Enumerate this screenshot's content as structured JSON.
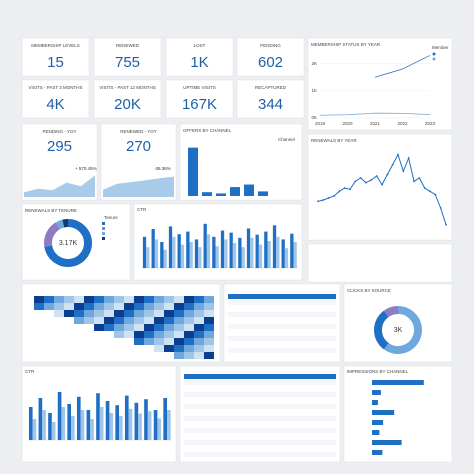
{
  "kpis": [
    {
      "label": "MEMBERSHIP LEVELS",
      "value": "15"
    },
    {
      "label": "RENEWED",
      "value": "755"
    },
    {
      "label": "LOST",
      "value": "1K"
    },
    {
      "label": "PENDING",
      "value": "602"
    },
    {
      "label": "VISITS - PAST 3 MONTHS",
      "value": "4K"
    },
    {
      "label": "VISITS - PAST 12 MONTHS",
      "value": "20K"
    },
    {
      "label": "UPTIME VISITS",
      "value": "167K"
    },
    {
      "label": "RECAPTURED",
      "value": "344"
    }
  ],
  "yoy": [
    {
      "title": "PENDING - YOY",
      "value": "295",
      "change": "+ 570.45%",
      "values": [
        20,
        35,
        28,
        60,
        45,
        90
      ],
      "color": "#6fa8dc"
    },
    {
      "title": "RENEWED - YOY",
      "value": "270",
      "change": "-38.36%",
      "values": [
        30,
        55,
        62,
        70,
        78,
        85
      ],
      "color": "#6fa8dc"
    }
  ],
  "status_chart": {
    "title": "MEMBERSHIP STATUS BY YEAR",
    "legend_title": "Member",
    "x": [
      "2019",
      "2020",
      "2021",
      "2022",
      "2023"
    ],
    "ylim": [
      0,
      2500
    ],
    "yticks": [
      {
        "value": 0,
        "label": "0K"
      },
      {
        "value": 1000,
        "label": "1K"
      },
      {
        "value": 2000,
        "label": "2K"
      }
    ],
    "series": [
      {
        "color": "#2f6fc4",
        "values": [
          null,
          null,
          1500,
          1800,
          2300
        ]
      },
      {
        "color": "#6fa8dc",
        "values": [
          100,
          120,
          180,
          170,
          130
        ]
      }
    ]
  },
  "offers_chart": {
    "title": "OFFERS BY CHANNEL",
    "legend_title": "Channel",
    "ylim": [
      0,
      2200
    ],
    "values": [
      1900,
      150,
      100,
      350,
      450,
      180
    ],
    "color": "#1f6fc4"
  },
  "renewals_chart": {
    "title": "RENEWALS BY YEAR",
    "ylim": [
      0,
      120
    ],
    "values": [
      40,
      42,
      45,
      48,
      55,
      60,
      58,
      70,
      75,
      68,
      72,
      78,
      65,
      80,
      95,
      110,
      85,
      105,
      70,
      75,
      60,
      55,
      50,
      30,
      5
    ],
    "color": "#1f6fc4"
  },
  "tenure": {
    "title": "RENEWALS BY TENURE",
    "center": "3.17K",
    "legend_title": "Tenure",
    "values": [
      2300,
      600,
      150,
      120
    ],
    "colors": [
      "#1f6fc4",
      "#8e7cc3",
      "#6fa8dc",
      "#123a6b"
    ]
  },
  "ctr": {
    "title": "CTR",
    "ylim": [
      0,
      100
    ],
    "series": [
      {
        "color": "#1f6fc4",
        "values": [
          60,
          75,
          50,
          80,
          65,
          70,
          55,
          85,
          60,
          72,
          68,
          58,
          76,
          64,
          70,
          82,
          55,
          66
        ]
      },
      {
        "color": "#9fc5e8",
        "values": [
          40,
          55,
          35,
          60,
          45,
          50,
          40,
          65,
          42,
          55,
          48,
          40,
          58,
          45,
          52,
          60,
          38,
          50
        ]
      }
    ]
  },
  "clicks": {
    "title": "CLICKS BY SOURCE",
    "center": "3K",
    "values": [
      1800,
      900,
      300
    ],
    "colors": [
      "#6fa8dc",
      "#1f6fc4",
      "#8e7cc3"
    ]
  },
  "ctr2": {
    "title": "CTR",
    "ylim": [
      0,
      100
    ],
    "series": [
      {
        "color": "#1f6fc4",
        "values": [
          55,
          70,
          45,
          80,
          60,
          72,
          50,
          78,
          65,
          58,
          74,
          62,
          68,
          50,
          70
        ]
      },
      {
        "color": "#9fc5e8",
        "values": [
          35,
          50,
          30,
          55,
          40,
          50,
          35,
          55,
          45,
          40,
          52,
          44,
          48,
          36,
          50
        ]
      }
    ]
  },
  "hbar": {
    "title": "IMPRESSIONS BY CHANNEL",
    "xlim": [
      0,
      100
    ],
    "values": [
      70,
      12,
      8,
      30,
      15,
      10,
      40,
      14
    ],
    "color": "#1f6fc4"
  }
}
